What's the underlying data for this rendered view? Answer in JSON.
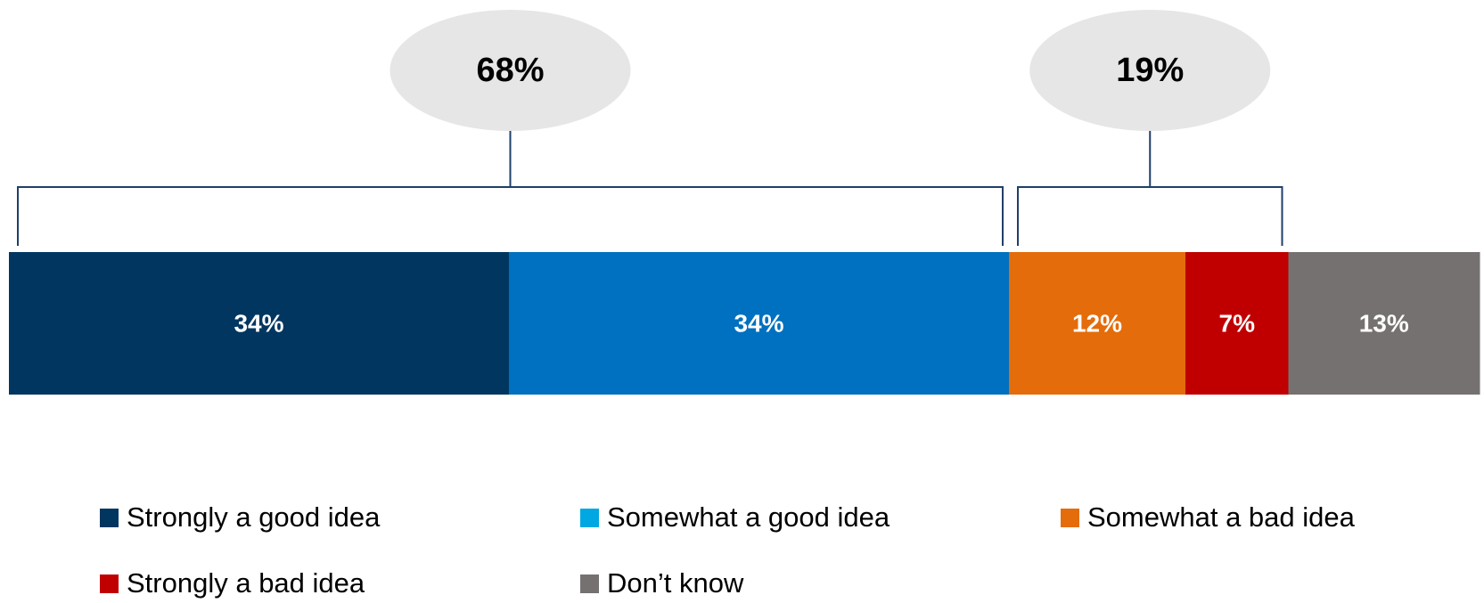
{
  "chart_data": {
    "type": "bar",
    "orientation": "horizontal-stacked",
    "categories": [
      ""
    ],
    "series": [
      {
        "name": "Strongly a good idea",
        "values": [
          34
        ],
        "label": "34%",
        "color": "#003660"
      },
      {
        "name": "Somewhat a good idea",
        "values": [
          34
        ],
        "label": "34%",
        "color": "#0070C0"
      },
      {
        "name": "Somewhat a bad idea",
        "values": [
          12
        ],
        "label": "12%",
        "color": "#E46C0A"
      },
      {
        "name": "Strongly a bad idea",
        "values": [
          7
        ],
        "label": "7%",
        "color": "#C00000"
      },
      {
        "name": "Don’t know",
        "values": [
          13
        ],
        "label": "13%",
        "color": "#767171"
      }
    ],
    "legend_swatch_colors": [
      "#003660",
      "#00A8E1",
      "#E46C0A",
      "#C00000",
      "#767171"
    ],
    "groups": [
      {
        "label": "68%",
        "series": [
          0,
          1
        ]
      },
      {
        "label": "19%",
        "series": [
          2,
          3
        ]
      }
    ],
    "legend_position": "bottom",
    "grid": false
  },
  "legend": {
    "items": [
      "Strongly a good idea",
      "Somewhat a good idea",
      "Somewhat a bad idea",
      "Strongly a bad idea",
      "Don’t know"
    ]
  }
}
